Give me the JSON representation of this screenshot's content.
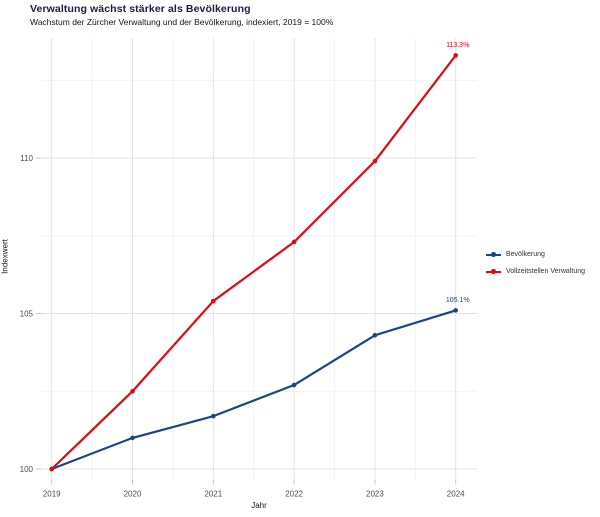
{
  "header": {
    "title": "Verwaltung wächst stärker als Bevölkerung",
    "subtitle": "Wachstum der Zürcher Verwaltung und der Bevölkerung, indexiert, 2019 = 100%"
  },
  "chart_data": {
    "type": "line",
    "x": [
      2019,
      2020,
      2021,
      2022,
      2023,
      2024
    ],
    "series": [
      {
        "name": "Bevölkerung",
        "color": "#1c4587",
        "values": [
          100,
          101.0,
          101.7,
          102.7,
          104.3,
          105.1
        ],
        "end_label": "105.1%"
      },
      {
        "name": "Vollzeitstellen Verwaltung",
        "color": "#e30613",
        "values": [
          100,
          102.5,
          105.4,
          107.3,
          109.9,
          113.3
        ],
        "end_label": "113.3%"
      }
    ],
    "xlabel": "Jahr",
    "ylabel": "Indexwert",
    "x_ticks": [
      2019,
      2020,
      2021,
      2022,
      2023,
      2024
    ],
    "y_ticks": [
      100,
      105,
      110
    ],
    "ylim": [
      100,
      113.9
    ],
    "grid": true,
    "legend_position": "right"
  },
  "colors": {
    "title": "#1a1a4e",
    "tick_label": "#4d4d4d",
    "grid_major": "#e3e3e3",
    "grid_minor": "#efefef",
    "axis_tick": "#c6c6c6"
  }
}
